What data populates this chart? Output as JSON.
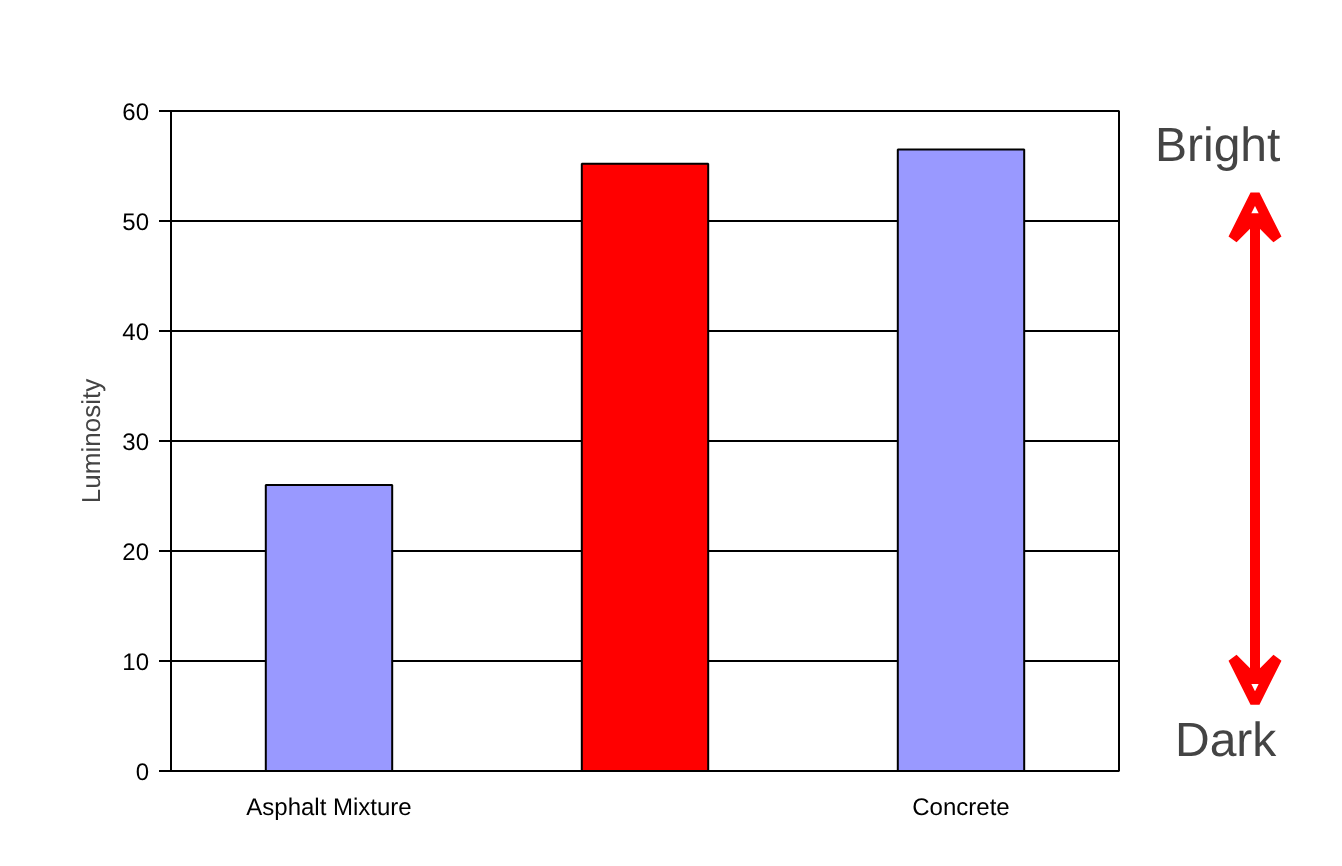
{
  "chart_data": {
    "type": "bar",
    "ylabel": "Luminosity",
    "categories": [
      "Asphalt Mixture",
      null,
      "Concrete"
    ],
    "values": [
      26,
      55.2,
      56.5
    ],
    "colors": [
      "#9999ff",
      "#ff0000",
      "#9999ff"
    ],
    "ylim": [
      0,
      60
    ],
    "yticks": [
      0,
      10,
      20,
      30,
      40,
      50,
      60
    ],
    "grid": "y",
    "annotations": [
      "Bright",
      "Dark"
    ]
  }
}
